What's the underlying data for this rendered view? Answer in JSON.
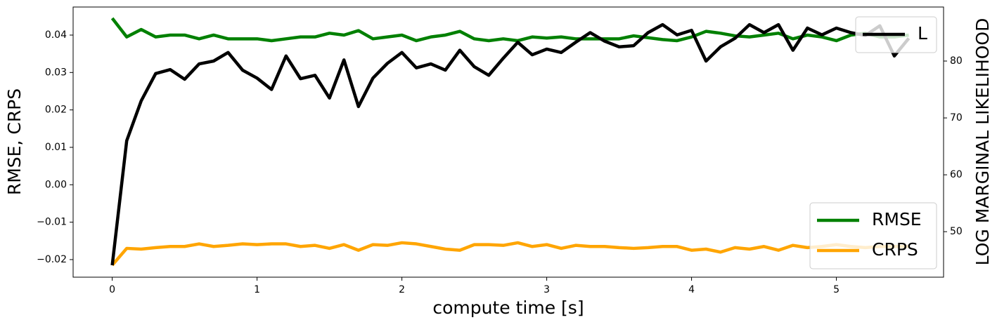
{
  "chart_data": {
    "type": "line",
    "xlabel": "compute time [s]",
    "ylabel": "RMSE, CRPS",
    "y2label": "LOG MARGINAL LIKELIHOOD",
    "x": [
      0,
      0.1,
      0.2,
      0.3,
      0.4,
      0.5,
      0.6,
      0.7,
      0.8,
      0.9,
      1.0,
      1.1,
      1.2,
      1.3,
      1.4,
      1.5,
      1.6,
      1.7,
      1.8,
      1.9,
      2.0,
      2.1,
      2.2,
      2.3,
      2.4,
      2.5,
      2.6,
      2.7,
      2.8,
      2.9,
      3.0,
      3.1,
      3.2,
      3.3,
      3.4,
      3.5,
      3.6,
      3.7,
      3.8,
      3.9,
      4.0,
      4.1,
      4.2,
      4.3,
      4.4,
      4.5,
      4.6,
      4.7,
      4.8,
      4.9,
      5.0,
      5.1,
      5.2,
      5.3,
      5.4,
      5.5
    ],
    "series": [
      {
        "name": "RMSE",
        "color": "#008000",
        "values": [
          0.0445,
          0.0395,
          0.0415,
          0.0395,
          0.04,
          0.04,
          0.039,
          0.04,
          0.039,
          0.039,
          0.039,
          0.0385,
          0.039,
          0.0395,
          0.0395,
          0.0405,
          0.04,
          0.0412,
          0.039,
          0.0395,
          0.04,
          0.0385,
          0.0395,
          0.04,
          0.041,
          0.039,
          0.0385,
          0.039,
          0.0385,
          0.0395,
          0.0392,
          0.0395,
          0.039,
          0.039,
          0.039,
          0.039,
          0.0398,
          0.0393,
          0.0388,
          0.0385,
          0.0395,
          0.041,
          0.0405,
          0.0398,
          0.0395,
          0.04,
          0.0405,
          0.039,
          0.04,
          0.0395,
          0.0385,
          0.04,
          0.0405,
          0.0395,
          0.0395,
          0.04
        ]
      },
      {
        "name": "CRPS",
        "color": "#ffa500",
        "values": [
          -0.0215,
          -0.017,
          -0.0172,
          -0.0168,
          -0.0165,
          -0.0165,
          -0.0158,
          -0.0165,
          -0.0162,
          -0.0158,
          -0.016,
          -0.0158,
          -0.0158,
          -0.0165,
          -0.0162,
          -0.017,
          -0.016,
          -0.0175,
          -0.016,
          -0.0162,
          -0.0155,
          -0.0158,
          -0.0165,
          -0.0172,
          -0.0175,
          -0.016,
          -0.016,
          -0.0162,
          -0.0155,
          -0.0165,
          -0.016,
          -0.017,
          -0.0162,
          -0.0165,
          -0.0165,
          -0.0168,
          -0.017,
          -0.0168,
          -0.0165,
          -0.0165,
          -0.0175,
          -0.0172,
          -0.018,
          -0.0168,
          -0.0172,
          -0.0165,
          -0.0175,
          -0.0162,
          -0.0168,
          -0.0165,
          -0.016,
          -0.0165,
          -0.0168,
          -0.0165,
          -0.0165,
          -0.0165
        ]
      },
      {
        "name": "L",
        "color": "#000000",
        "axis": "y2",
        "values": [
          44.1,
          66,
          73,
          77.8,
          78.5,
          76.8,
          79.5,
          80,
          81.5,
          78.4,
          77,
          75,
          80.9,
          76.9,
          77.5,
          73.5,
          80.2,
          72,
          77,
          79.6,
          81.5,
          78.8,
          79.5,
          78.4,
          81.9,
          79,
          77.5,
          80.5,
          83.3,
          81.1,
          82.1,
          81.5,
          83.3,
          85,
          83.5,
          82.5,
          82.7,
          85,
          86.4,
          84.6,
          85.4,
          80,
          82.5,
          84,
          86.4,
          85,
          86.4,
          81.9,
          85.8,
          84.6,
          85.8,
          85,
          84.5,
          86.2,
          80.9,
          84
        ]
      }
    ],
    "xlim": [
      -0.27,
      5.74
    ],
    "xticks": [
      0,
      1,
      2,
      3,
      4,
      5
    ],
    "ylim": [
      -0.0247,
      0.0475
    ],
    "yticks": [
      {
        "value": -0.02,
        "label": "−0.02"
      },
      {
        "value": -0.01,
        "label": "−0.01"
      },
      {
        "value": 0,
        "label": "0.00"
      },
      0.01,
      0.02,
      0.03,
      0.04
    ],
    "y2lim": [
      42.0,
      89.5
    ],
    "y2ticks": [
      50,
      60,
      70,
      80
    ],
    "legend": "lower right",
    "legend2": "upper right",
    "grid": false
  }
}
